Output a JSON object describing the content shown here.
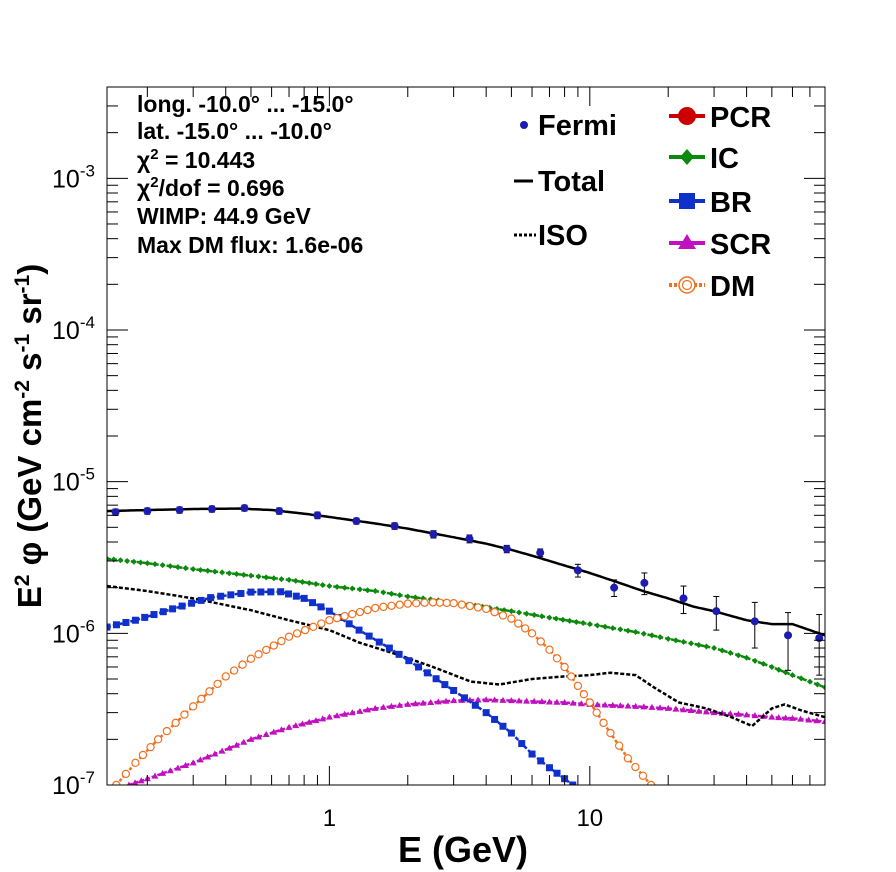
{
  "chart_data": {
    "type": "line",
    "xscale": "log",
    "yscale": "log",
    "xlim": [
      0.14,
      80
    ],
    "ylim": [
      1e-07,
      0.004
    ],
    "xlabel": "E (GeV)",
    "ylabel": {
      "pre": "E",
      "sup1": "2",
      "mid": " φ (GeV cm",
      "sup2": "-2",
      "mid2": " s",
      "sup3": "-1",
      "mid3": " sr",
      "sup4": "-1",
      "post": ")"
    },
    "x_ticks": [
      {
        "v": 1,
        "label": "1"
      },
      {
        "v": 10,
        "label": "10"
      }
    ],
    "y_ticks": [
      {
        "v": 1e-07,
        "base": "10",
        "exp": "-7"
      },
      {
        "v": 1e-06,
        "base": "10",
        "exp": "-6"
      },
      {
        "v": 1e-05,
        "base": "10",
        "exp": "-5"
      },
      {
        "v": 0.0001,
        "base": "10",
        "exp": "-4"
      },
      {
        "v": 0.001,
        "base": "10",
        "exp": "-3"
      }
    ],
    "info": {
      "long": "long. -10.0° ... -15.0°",
      "lat": "lat. -15.0° ... -10.0°",
      "chi2_label": "χ",
      "chi2_sup": "2",
      "chi2_value": " = 10.443",
      "chi2dof_label": "χ",
      "chi2dof_sup": "2",
      "chi2dof_value": "/dof = 0.696",
      "wimp": "WIMP: 44.9 GeV",
      "maxdm": "Max DM flux: 1.6e-06"
    },
    "legend": {
      "left": [
        {
          "key": "fermi",
          "label": "Fermi"
        },
        {
          "key": "total",
          "label": "Total"
        },
        {
          "key": "iso",
          "label": "ISO"
        }
      ],
      "right": [
        {
          "key": "pcr",
          "label": "PCR"
        },
        {
          "key": "ic",
          "label": "IC"
        },
        {
          "key": "br",
          "label": "BR"
        },
        {
          "key": "scr",
          "label": "SCR"
        },
        {
          "key": "dm",
          "label": "DM"
        }
      ]
    },
    "colors": {
      "fermi": "#1c1cb0",
      "total": "#000000",
      "iso": "#000000",
      "pcr": "#cc0000",
      "ic": "#0a8a0a",
      "br": "#1030cc",
      "scr": "#c010c0",
      "dm": "#f07020"
    },
    "fermi": [
      {
        "x": 0.151,
        "y": 6.3e-06,
        "err": 3e-07
      },
      {
        "x": 0.2,
        "y": 6.4e-06,
        "err": 3e-07
      },
      {
        "x": 0.266,
        "y": 6.5e-06,
        "err": 3e-07
      },
      {
        "x": 0.354,
        "y": 6.6e-06,
        "err": 3e-07
      },
      {
        "x": 0.472,
        "y": 6.7e-06,
        "err": 3e-07
      },
      {
        "x": 0.642,
        "y": 6.4e-06,
        "err": 3e-07
      },
      {
        "x": 0.9,
        "y": 6e-06,
        "err": 3e-07
      },
      {
        "x": 1.27,
        "y": 5.5e-06,
        "err": 2.5e-07
      },
      {
        "x": 1.78,
        "y": 5.1e-06,
        "err": 2.5e-07
      },
      {
        "x": 2.51,
        "y": 4.5e-06,
        "err": 2.5e-07
      },
      {
        "x": 3.45,
        "y": 4.2e-06,
        "err": 2.5e-07
      },
      {
        "x": 4.8,
        "y": 3.6e-06,
        "err": 2e-07
      },
      {
        "x": 6.45,
        "y": 3.4e-06,
        "err": 2e-07
      },
      {
        "x": 9.0,
        "y": 2.6e-06,
        "err": 2.5e-07
      },
      {
        "x": 12.4,
        "y": 2e-06,
        "err": 2.5e-07
      },
      {
        "x": 16.2,
        "y": 2.15e-06,
        "err": 3.5e-07
      },
      {
        "x": 22.9,
        "y": 1.7e-06,
        "err": 3.5e-07
      },
      {
        "x": 30.6,
        "y": 1.4e-06,
        "err": 3.5e-07
      },
      {
        "x": 43.0,
        "y": 1.2e-06,
        "err": 4e-07
      },
      {
        "x": 57.7,
        "y": 9.7e-07,
        "err": 4e-07
      },
      {
        "x": 76.0,
        "y": 9.3e-07,
        "err": 4e-07
      }
    ],
    "total": [
      [
        0.14,
        6.4e-06
      ],
      [
        0.2,
        6.5e-06
      ],
      [
        0.3,
        6.6e-06
      ],
      [
        0.45,
        6.65e-06
      ],
      [
        0.6,
        6.5e-06
      ],
      [
        0.8,
        6.15e-06
      ],
      [
        1.0,
        5.85e-06
      ],
      [
        1.5,
        5.3e-06
      ],
      [
        2.0,
        4.9e-06
      ],
      [
        3.0,
        4.3e-06
      ],
      [
        4.0,
        3.9e-06
      ],
      [
        5.0,
        3.55e-06
      ],
      [
        6.0,
        3.25e-06
      ],
      [
        8.0,
        2.8e-06
      ],
      [
        10.0,
        2.5e-06
      ],
      [
        13.0,
        2.15e-06
      ],
      [
        16.0,
        1.9e-06
      ],
      [
        20.0,
        1.7e-06
      ],
      [
        25.0,
        1.5e-06
      ],
      [
        30.0,
        1.4e-06
      ],
      [
        40.0,
        1.22e-06
      ],
      [
        50.0,
        1.15e-06
      ],
      [
        60.0,
        1.15e-06
      ],
      [
        70.0,
        1.05e-06
      ],
      [
        80.0,
        9.7e-07
      ]
    ],
    "iso": [
      [
        0.14,
        2.05e-06
      ],
      [
        0.2,
        1.9e-06
      ],
      [
        0.3,
        1.7e-06
      ],
      [
        0.5,
        1.42e-06
      ],
      [
        0.7,
        1.22e-06
      ],
      [
        1.0,
        1.05e-06
      ],
      [
        1.3,
        8.7e-07
      ],
      [
        1.8,
        7.3e-07
      ],
      [
        2.5,
        6e-07
      ],
      [
        3.5,
        4.8e-07
      ],
      [
        4.5,
        4.6e-07
      ],
      [
        6.0,
        5e-07
      ],
      [
        8.0,
        5.2e-07
      ],
      [
        10.0,
        5.3e-07
      ],
      [
        12.0,
        5.5e-07
      ],
      [
        15.0,
        5.3e-07
      ],
      [
        18.0,
        4.3e-07
      ],
      [
        22.0,
        3.5e-07
      ],
      [
        28.0,
        3.2e-07
      ],
      [
        35.0,
        2.8e-07
      ],
      [
        42.0,
        2.45e-07
      ],
      [
        50.0,
        3.2e-07
      ],
      [
        56.0,
        3.4e-07
      ],
      [
        65.0,
        3.1e-07
      ],
      [
        80.0,
        2.8e-07
      ]
    ],
    "ic": [
      [
        0.14,
        3.1e-06
      ],
      [
        0.2,
        2.9e-06
      ],
      [
        0.3,
        2.65e-06
      ],
      [
        0.5,
        2.4e-06
      ],
      [
        0.7,
        2.25e-06
      ],
      [
        1.0,
        2.05e-06
      ],
      [
        1.5,
        1.9e-06
      ],
      [
        2.0,
        1.75e-06
      ],
      [
        3.0,
        1.6e-06
      ],
      [
        5.0,
        1.4e-06
      ],
      [
        7.0,
        1.27e-06
      ],
      [
        10.0,
        1.15e-06
      ],
      [
        15.0,
        1.02e-06
      ],
      [
        20.0,
        9.2e-07
      ],
      [
        30.0,
        8e-07
      ],
      [
        40.0,
        6.9e-07
      ],
      [
        50.0,
        6e-07
      ],
      [
        60.0,
        5.3e-07
      ],
      [
        70.0,
        4.8e-07
      ],
      [
        80.0,
        4.4e-07
      ]
    ],
    "br": [
      [
        0.14,
        1.1e-06
      ],
      [
        0.18,
        1.22e-06
      ],
      [
        0.25,
        1.45e-06
      ],
      [
        0.35,
        1.72e-06
      ],
      [
        0.5,
        1.87e-06
      ],
      [
        0.65,
        1.88e-06
      ],
      [
        0.8,
        1.7e-06
      ],
      [
        1.0,
        1.4e-06
      ],
      [
        1.3,
        1.05e-06
      ],
      [
        1.7,
        8e-07
      ],
      [
        2.2,
        6e-07
      ],
      [
        3.0,
        4.2e-07
      ],
      [
        4.0,
        3e-07
      ],
      [
        5.0,
        2.2e-07
      ],
      [
        6.0,
        1.6e-07
      ],
      [
        7.0,
        1.3e-07
      ],
      [
        8.0,
        1.1e-07
      ],
      [
        8.6,
        1e-07
      ]
    ],
    "scr": [
      [
        0.17,
        1e-07
      ],
      [
        0.2,
        1.1e-07
      ],
      [
        0.3,
        1.4e-07
      ],
      [
        0.5,
        2e-07
      ],
      [
        0.7,
        2.4e-07
      ],
      [
        1.0,
        2.8e-07
      ],
      [
        1.5,
        3.2e-07
      ],
      [
        2.0,
        3.4e-07
      ],
      [
        3.0,
        3.6e-07
      ],
      [
        4.0,
        3.65e-07
      ],
      [
        5.0,
        3.6e-07
      ],
      [
        8.0,
        3.5e-07
      ],
      [
        10.0,
        3.4e-07
      ],
      [
        15.0,
        3.3e-07
      ],
      [
        20.0,
        3.2e-07
      ],
      [
        30.0,
        3e-07
      ],
      [
        40.0,
        2.9e-07
      ],
      [
        50.0,
        2.8e-07
      ],
      [
        60.0,
        2.75e-07
      ],
      [
        80.0,
        2.62e-07
      ]
    ],
    "dm": [
      [
        0.152,
        1e-07
      ],
      [
        0.18,
        1.4e-07
      ],
      [
        0.22,
        2e-07
      ],
      [
        0.3,
        3.3e-07
      ],
      [
        0.4,
        5.2e-07
      ],
      [
        0.5,
        6.8e-07
      ],
      [
        0.7,
        9.5e-07
      ],
      [
        1.0,
        1.22e-06
      ],
      [
        1.5,
        1.47e-06
      ],
      [
        2.0,
        1.57e-06
      ],
      [
        2.5,
        1.6e-06
      ],
      [
        3.0,
        1.58e-06
      ],
      [
        4.0,
        1.45e-06
      ],
      [
        5.0,
        1.25e-06
      ],
      [
        6.0,
        1e-06
      ],
      [
        7.0,
        7.8e-07
      ],
      [
        8.0,
        6e-07
      ],
      [
        9.0,
        4.5e-07
      ],
      [
        10.0,
        3.5e-07
      ],
      [
        12.0,
        2.2e-07
      ],
      [
        14.0,
        1.5e-07
      ],
      [
        16.0,
        1.15e-07
      ],
      [
        17.2,
        1e-07
      ]
    ]
  }
}
